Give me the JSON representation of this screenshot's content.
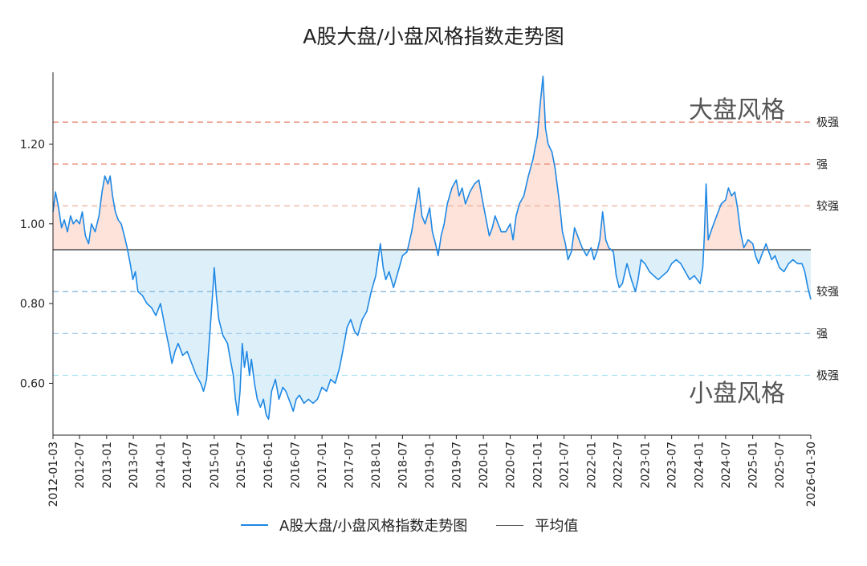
{
  "chart_data": {
    "type": "line",
    "title": "A股大盘/小盘风格指数走势图",
    "legend": {
      "series_label": "A股大盘/小盘风格指数走势图",
      "mean_label": "平均值",
      "placement": "bottom-center"
    },
    "colors": {
      "series": "#1E88E5",
      "mean": "#555555",
      "fill_above": "#FDE3DA",
      "fill_below": "#DDF0FA"
    },
    "x_range": [
      "2012-01-03",
      "2026-01-30"
    ],
    "x_ticks": [
      "2012-01-03",
      "2012-07",
      "2013-01",
      "2013-07",
      "2014-01",
      "2014-07",
      "2015-01",
      "2015-07",
      "2016-01",
      "2016-07",
      "2017-01",
      "2017-07",
      "2018-01",
      "2018-07",
      "2019-01",
      "2019-07",
      "2020-01",
      "2020-07",
      "2021-01",
      "2021-07",
      "2022-01",
      "2022-07",
      "2023-01",
      "2023-07",
      "2024-01",
      "2024-07",
      "2025-01",
      "2025-07",
      "2026-01-30"
    ],
    "ylim": [
      0.47,
      1.36
    ],
    "y_ticks": [
      0.6,
      0.8,
      1.0,
      1.2
    ],
    "y_tick_labels": [
      "0.60",
      "0.80",
      "1.00",
      "1.20"
    ],
    "mean": 0.935,
    "reference_lines": [
      {
        "value": 1.255,
        "label": "极强",
        "color": "#E8826A"
      },
      {
        "value": 1.15,
        "label": "强",
        "color": "#E8826A"
      },
      {
        "value": 1.045,
        "label": "较强",
        "color": "#F0B4A4"
      },
      {
        "value": 0.83,
        "label": "较强",
        "color": "#7FB2D9"
      },
      {
        "value": 0.725,
        "label": "强",
        "color": "#A9CDEB"
      },
      {
        "value": 0.62,
        "label": "极强",
        "color": "#A6E2F0"
      }
    ],
    "annotations": {
      "top": "大盘风格",
      "bottom": "小盘风格"
    },
    "series": [
      {
        "name": "A股大盘/小盘风格指数走势图",
        "points": [
          [
            "2012-01-03",
            1.03
          ],
          [
            "2012-01-20",
            1.08
          ],
          [
            "2012-02-10",
            1.04
          ],
          [
            "2012-03-01",
            0.99
          ],
          [
            "2012-03-20",
            1.01
          ],
          [
            "2012-04-10",
            0.98
          ],
          [
            "2012-05-01",
            1.02
          ],
          [
            "2012-05-20",
            1.0
          ],
          [
            "2012-06-10",
            1.01
          ],
          [
            "2012-07-01",
            1.0
          ],
          [
            "2012-07-20",
            1.03
          ],
          [
            "2012-08-10",
            0.97
          ],
          [
            "2012-09-01",
            0.95
          ],
          [
            "2012-09-20",
            1.0
          ],
          [
            "2012-10-15",
            0.98
          ],
          [
            "2012-11-10",
            1.02
          ],
          [
            "2012-12-01",
            1.08
          ],
          [
            "2012-12-20",
            1.12
          ],
          [
            "2013-01-10",
            1.1
          ],
          [
            "2013-01-25",
            1.12
          ],
          [
            "2013-02-10",
            1.07
          ],
          [
            "2013-03-01",
            1.03
          ],
          [
            "2013-03-20",
            1.01
          ],
          [
            "2013-04-10",
            1.0
          ],
          [
            "2013-05-01",
            0.97
          ],
          [
            "2013-05-20",
            0.94
          ],
          [
            "2013-06-10",
            0.9
          ],
          [
            "2013-06-28",
            0.86
          ],
          [
            "2013-07-15",
            0.88
          ],
          [
            "2013-08-01",
            0.83
          ],
          [
            "2013-09-01",
            0.82
          ],
          [
            "2013-10-01",
            0.8
          ],
          [
            "2013-11-01",
            0.79
          ],
          [
            "2013-12-01",
            0.77
          ],
          [
            "2014-01-01",
            0.8
          ],
          [
            "2014-02-01",
            0.74
          ],
          [
            "2014-03-01",
            0.69
          ],
          [
            "2014-03-20",
            0.65
          ],
          [
            "2014-04-10",
            0.68
          ],
          [
            "2014-05-01",
            0.7
          ],
          [
            "2014-06-01",
            0.67
          ],
          [
            "2014-07-01",
            0.68
          ],
          [
            "2014-08-01",
            0.65
          ],
          [
            "2014-09-01",
            0.62
          ],
          [
            "2014-10-01",
            0.6
          ],
          [
            "2014-10-20",
            0.58
          ],
          [
            "2014-11-10",
            0.61
          ],
          [
            "2014-12-01",
            0.72
          ],
          [
            "2014-12-20",
            0.82
          ],
          [
            "2015-01-01",
            0.89
          ],
          [
            "2015-01-15",
            0.82
          ],
          [
            "2015-02-01",
            0.76
          ],
          [
            "2015-03-01",
            0.72
          ],
          [
            "2015-04-01",
            0.7
          ],
          [
            "2015-04-20",
            0.66
          ],
          [
            "2015-05-10",
            0.62
          ],
          [
            "2015-05-25",
            0.56
          ],
          [
            "2015-06-10",
            0.52
          ],
          [
            "2015-06-25",
            0.58
          ],
          [
            "2015-07-10",
            0.7
          ],
          [
            "2015-07-25",
            0.64
          ],
          [
            "2015-08-10",
            0.68
          ],
          [
            "2015-08-28",
            0.62
          ],
          [
            "2015-09-10",
            0.66
          ],
          [
            "2015-10-01",
            0.6
          ],
          [
            "2015-10-20",
            0.56
          ],
          [
            "2015-11-10",
            0.54
          ],
          [
            "2015-12-01",
            0.56
          ],
          [
            "2015-12-20",
            0.52
          ],
          [
            "2016-01-05",
            0.51
          ],
          [
            "2016-01-25",
            0.58
          ],
          [
            "2016-02-20",
            0.61
          ],
          [
            "2016-03-15",
            0.56
          ],
          [
            "2016-04-10",
            0.59
          ],
          [
            "2016-05-01",
            0.58
          ],
          [
            "2016-06-01",
            0.55
          ],
          [
            "2016-06-20",
            0.53
          ],
          [
            "2016-07-10",
            0.56
          ],
          [
            "2016-08-01",
            0.57
          ],
          [
            "2016-09-01",
            0.55
          ],
          [
            "2016-10-01",
            0.56
          ],
          [
            "2016-11-01",
            0.55
          ],
          [
            "2016-12-01",
            0.56
          ],
          [
            "2017-01-01",
            0.59
          ],
          [
            "2017-02-01",
            0.58
          ],
          [
            "2017-03-01",
            0.61
          ],
          [
            "2017-04-01",
            0.6
          ],
          [
            "2017-05-01",
            0.64
          ],
          [
            "2017-06-01",
            0.7
          ],
          [
            "2017-06-20",
            0.74
          ],
          [
            "2017-07-15",
            0.76
          ],
          [
            "2017-08-10",
            0.73
          ],
          [
            "2017-09-01",
            0.72
          ],
          [
            "2017-10-01",
            0.76
          ],
          [
            "2017-11-01",
            0.78
          ],
          [
            "2017-12-01",
            0.83
          ],
          [
            "2018-01-01",
            0.87
          ],
          [
            "2018-01-20",
            0.92
          ],
          [
            "2018-02-01",
            0.95
          ],
          [
            "2018-02-20",
            0.89
          ],
          [
            "2018-03-10",
            0.86
          ],
          [
            "2018-04-01",
            0.88
          ],
          [
            "2018-05-01",
            0.84
          ],
          [
            "2018-06-01",
            0.88
          ],
          [
            "2018-07-01",
            0.92
          ],
          [
            "2018-08-01",
            0.93
          ],
          [
            "2018-09-01",
            0.98
          ],
          [
            "2018-10-01",
            1.05
          ],
          [
            "2018-10-20",
            1.09
          ],
          [
            "2018-11-10",
            1.02
          ],
          [
            "2018-12-01",
            1.0
          ],
          [
            "2019-01-01",
            1.04
          ],
          [
            "2019-01-20",
            0.98
          ],
          [
            "2019-02-10",
            0.95
          ],
          [
            "2019-02-28",
            0.92
          ],
          [
            "2019-03-20",
            0.97
          ],
          [
            "2019-04-10",
            1.0
          ],
          [
            "2019-05-01",
            1.05
          ],
          [
            "2019-06-01",
            1.09
          ],
          [
            "2019-07-01",
            1.11
          ],
          [
            "2019-07-20",
            1.07
          ],
          [
            "2019-08-10",
            1.09
          ],
          [
            "2019-09-01",
            1.05
          ],
          [
            "2019-10-01",
            1.08
          ],
          [
            "2019-11-01",
            1.1
          ],
          [
            "2019-12-01",
            1.11
          ],
          [
            "2019-12-20",
            1.07
          ],
          [
            "2020-01-15",
            1.02
          ],
          [
            "2020-02-10",
            0.97
          ],
          [
            "2020-03-01",
            0.99
          ],
          [
            "2020-03-20",
            1.02
          ],
          [
            "2020-04-10",
            1.0
          ],
          [
            "2020-05-01",
            0.98
          ],
          [
            "2020-06-01",
            0.98
          ],
          [
            "2020-07-01",
            1.0
          ],
          [
            "2020-07-20",
            0.96
          ],
          [
            "2020-08-10",
            1.02
          ],
          [
            "2020-09-01",
            1.05
          ],
          [
            "2020-10-01",
            1.07
          ],
          [
            "2020-11-01",
            1.12
          ],
          [
            "2020-12-01",
            1.16
          ],
          [
            "2021-01-01",
            1.22
          ],
          [
            "2021-01-20",
            1.3
          ],
          [
            "2021-02-08",
            1.37
          ],
          [
            "2021-02-25",
            1.24
          ],
          [
            "2021-03-15",
            1.2
          ],
          [
            "2021-04-10",
            1.18
          ],
          [
            "2021-05-01",
            1.14
          ],
          [
            "2021-06-01",
            1.05
          ],
          [
            "2021-06-20",
            0.98
          ],
          [
            "2021-07-10",
            0.95
          ],
          [
            "2021-07-28",
            0.91
          ],
          [
            "2021-08-20",
            0.93
          ],
          [
            "2021-09-10",
            0.99
          ],
          [
            "2021-10-01",
            0.97
          ],
          [
            "2021-11-01",
            0.94
          ],
          [
            "2021-12-01",
            0.92
          ],
          [
            "2022-01-01",
            0.94
          ],
          [
            "2022-01-20",
            0.91
          ],
          [
            "2022-02-10",
            0.93
          ],
          [
            "2022-03-01",
            0.96
          ],
          [
            "2022-03-20",
            1.03
          ],
          [
            "2022-04-10",
            0.96
          ],
          [
            "2022-05-01",
            0.94
          ],
          [
            "2022-06-01",
            0.93
          ],
          [
            "2022-06-20",
            0.87
          ],
          [
            "2022-07-10",
            0.84
          ],
          [
            "2022-08-01",
            0.85
          ],
          [
            "2022-09-01",
            0.9
          ],
          [
            "2022-10-01",
            0.86
          ],
          [
            "2022-10-28",
            0.83
          ],
          [
            "2022-11-15",
            0.86
          ],
          [
            "2022-12-05",
            0.91
          ],
          [
            "2023-01-01",
            0.9
          ],
          [
            "2023-02-01",
            0.88
          ],
          [
            "2023-03-01",
            0.87
          ],
          [
            "2023-04-01",
            0.86
          ],
          [
            "2023-05-01",
            0.87
          ],
          [
            "2023-06-01",
            0.88
          ],
          [
            "2023-07-01",
            0.9
          ],
          [
            "2023-08-01",
            0.91
          ],
          [
            "2023-09-01",
            0.9
          ],
          [
            "2023-10-01",
            0.88
          ],
          [
            "2023-11-01",
            0.86
          ],
          [
            "2023-12-01",
            0.87
          ],
          [
            "2024-01-10",
            0.85
          ],
          [
            "2024-01-28",
            0.89
          ],
          [
            "2024-02-08",
            0.97
          ],
          [
            "2024-02-20",
            1.1
          ],
          [
            "2024-03-05",
            0.96
          ],
          [
            "2024-04-01",
            0.99
          ],
          [
            "2024-05-01",
            1.02
          ],
          [
            "2024-06-01",
            1.05
          ],
          [
            "2024-07-01",
            1.06
          ],
          [
            "2024-07-20",
            1.09
          ],
          [
            "2024-08-10",
            1.07
          ],
          [
            "2024-09-01",
            1.08
          ],
          [
            "2024-09-20",
            1.04
          ],
          [
            "2024-10-10",
            0.98
          ],
          [
            "2024-11-01",
            0.94
          ],
          [
            "2024-12-01",
            0.96
          ],
          [
            "2025-01-01",
            0.95
          ],
          [
            "2025-01-20",
            0.92
          ],
          [
            "2025-02-10",
            0.9
          ],
          [
            "2025-03-01",
            0.92
          ],
          [
            "2025-04-01",
            0.95
          ],
          [
            "2025-04-20",
            0.93
          ],
          [
            "2025-05-10",
            0.91
          ],
          [
            "2025-06-01",
            0.92
          ],
          [
            "2025-07-01",
            0.89
          ],
          [
            "2025-08-01",
            0.88
          ],
          [
            "2025-09-01",
            0.9
          ],
          [
            "2025-10-01",
            0.91
          ],
          [
            "2025-11-01",
            0.9
          ],
          [
            "2025-12-01",
            0.9
          ],
          [
            "2025-12-20",
            0.88
          ],
          [
            "2026-01-10",
            0.84
          ],
          [
            "2026-01-30",
            0.81
          ]
        ]
      }
    ]
  }
}
